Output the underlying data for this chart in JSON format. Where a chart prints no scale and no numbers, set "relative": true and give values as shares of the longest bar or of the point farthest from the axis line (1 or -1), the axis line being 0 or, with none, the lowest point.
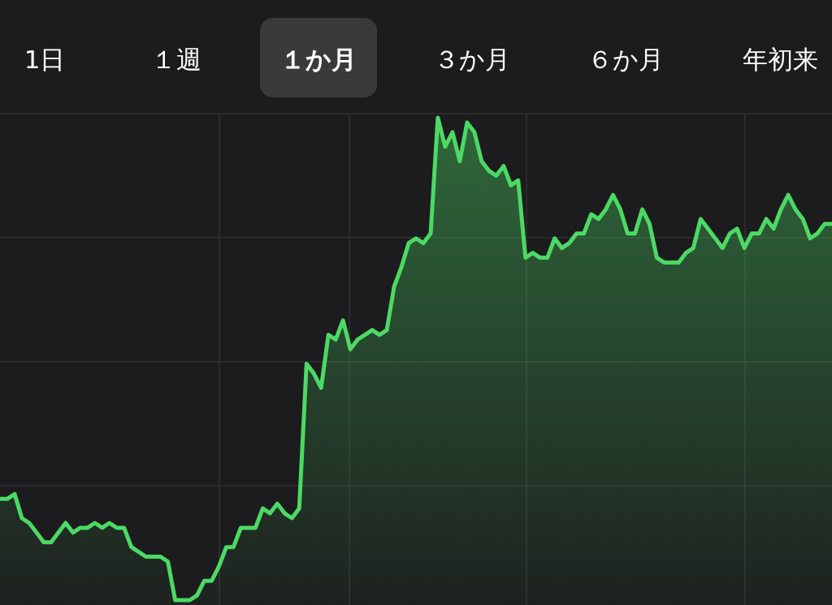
{
  "chart_data": {
    "type": "area",
    "relative": true,
    "grid": true,
    "annotations": [
      "1日",
      "１週",
      "１か月",
      "３か月",
      "６か月",
      "年初来"
    ],
    "categories": [
      null,
      null,
      null,
      null,
      null,
      null,
      null,
      null,
      null,
      null,
      null,
      null,
      null,
      null,
      null,
      null,
      null,
      null,
      null,
      null,
      null,
      null,
      null,
      null,
      null,
      null,
      null,
      null,
      null,
      null,
      null,
      null,
      null,
      null,
      null,
      null,
      null,
      null,
      null,
      null,
      null,
      null,
      null,
      null,
      null,
      null,
      null,
      null,
      null,
      null,
      null,
      null,
      null,
      null,
      null,
      null,
      null,
      null,
      null,
      null,
      null,
      null,
      null,
      null,
      null,
      null,
      null,
      null,
      null,
      null,
      null,
      null,
      null,
      null,
      null,
      null,
      null,
      null,
      null,
      null,
      null,
      null,
      null,
      null,
      null,
      null,
      null,
      null,
      null,
      null,
      null,
      null,
      null,
      null,
      null,
      null,
      null,
      null,
      null,
      null,
      null,
      null,
      null,
      null,
      null,
      null,
      null,
      null,
      null,
      null,
      null,
      null,
      null,
      null,
      null
    ],
    "series": [
      {
        "color": "#4cd964",
        "values": [
          0.21,
          0.21,
          0.22,
          0.17,
          0.16,
          0.14,
          0.12,
          0.12,
          0.14,
          0.16,
          0.14,
          0.15,
          0.15,
          0.16,
          0.15,
          0.16,
          0.15,
          0.15,
          0.11,
          0.1,
          0.09,
          0.09,
          0.09,
          0.08,
          0.0,
          0,
          0.0,
          0.01,
          0.04,
          0.04,
          0.07,
          0.11,
          0.11,
          0.15,
          0.15,
          0.15,
          0.19,
          0.18,
          0.2,
          0.18,
          0.17,
          0.19,
          0.49,
          0.47,
          0.44,
          0.55,
          0.54,
          0.58,
          0.52,
          0.54,
          0.55,
          0.56,
          0.55,
          0.56,
          0.65,
          0.69,
          0.74,
          0.75,
          0.74,
          0.76,
          1,
          0.94,
          0.97,
          0.91,
          0.99,
          0.97,
          0.91,
          0.89,
          0.88,
          0.9,
          0.86,
          0.87,
          0.71,
          0.72,
          0.71,
          0.71,
          0.75,
          0.73,
          0.74,
          0.76,
          0.76,
          0.8,
          0.79,
          0.81,
          0.84,
          0.81,
          0.76,
          0.76,
          0.81,
          0.78,
          0.71,
          0.7,
          0.7,
          0.7,
          0.72,
          0.73,
          0.79,
          0.77,
          0.75,
          0.73,
          0.76,
          0.77,
          0.73,
          0.76,
          0.76,
          0.79,
          0.77,
          0.81,
          0.84,
          0.81,
          0.79,
          0.75,
          0.76,
          0.78,
          0.78
        ]
      }
    ]
  }
}
